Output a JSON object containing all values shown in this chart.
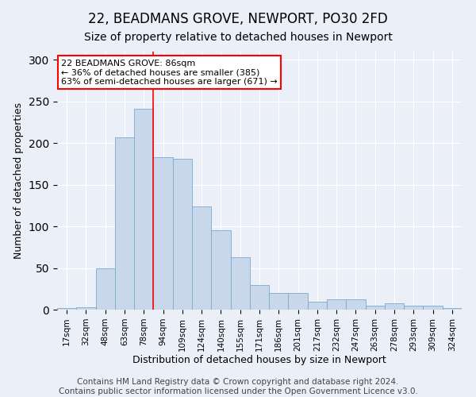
{
  "title1": "22, BEADMANS GROVE, NEWPORT, PO30 2FD",
  "title2": "Size of property relative to detached houses in Newport",
  "xlabel": "Distribution of detached houses by size in Newport",
  "ylabel": "Number of detached properties",
  "categories": [
    "17sqm",
    "32sqm",
    "48sqm",
    "63sqm",
    "78sqm",
    "94sqm",
    "109sqm",
    "124sqm",
    "140sqm",
    "155sqm",
    "171sqm",
    "186sqm",
    "201sqm",
    "217sqm",
    "232sqm",
    "247sqm",
    "263sqm",
    "278sqm",
    "293sqm",
    "309sqm",
    "324sqm"
  ],
  "values": [
    2,
    3,
    50,
    207,
    241,
    183,
    181,
    124,
    95,
    63,
    30,
    20,
    20,
    10,
    12,
    12,
    5,
    8,
    5,
    5,
    2
  ],
  "bar_color": "#c8d8ea",
  "bar_edge_color": "#7aaac8",
  "reference_line_x": 4.5,
  "annotation_text": "22 BEADMANS GROVE: 86sqm\n← 36% of detached houses are smaller (385)\n63% of semi-detached houses are larger (671) →",
  "annotation_box_color": "white",
  "annotation_box_edge_color": "red",
  "footer1": "Contains HM Land Registry data © Crown copyright and database right 2024.",
  "footer2": "Contains public sector information licensed under the Open Government Licence v3.0.",
  "ylim": [
    0,
    310
  ],
  "bg_color": "#eaeff8",
  "plot_bg_color": "#eaeff8",
  "title1_fontsize": 12,
  "title2_fontsize": 10,
  "xlabel_fontsize": 9,
  "ylabel_fontsize": 9,
  "tick_fontsize": 7.5,
  "footer_fontsize": 7.5,
  "annotation_fontsize": 8
}
